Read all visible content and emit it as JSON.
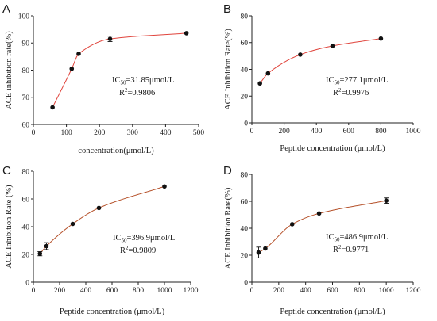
{
  "chart_data": [
    {
      "type": "scatter",
      "letter": "A",
      "xlabel": "concentration(μmol/L)",
      "ylabel": "ACE inhibition rate(%)",
      "xlim": [
        0,
        500
      ],
      "ylim": [
        60,
        100
      ],
      "xticks": [
        0,
        100,
        200,
        300,
        400,
        500
      ],
      "yticks": [
        60,
        70,
        80,
        90,
        100
      ],
      "points": [
        {
          "x": 58,
          "y": 66.3,
          "err": 0
        },
        {
          "x": 116,
          "y": 80.5,
          "err": 0
        },
        {
          "x": 137,
          "y": 86.0,
          "err": 0
        },
        {
          "x": 232,
          "y": 91.5,
          "err": 1.0
        },
        {
          "x": 463,
          "y": 93.6,
          "err": 0
        }
      ],
      "fit": {
        "color": "#e0443c",
        "x_start": 55,
        "x_end": 460
      },
      "ic50_label": "IC",
      "ic50_sub": "50",
      "ic50_value": "=31.85μmol/L",
      "r2_label": "R",
      "r2_sup": "2",
      "r2_value": "=0.9806"
    },
    {
      "type": "scatter",
      "letter": "B",
      "xlabel": "Peptide concentration (μmol/L)",
      "ylabel": "ACE Inhibition Rate(%)",
      "xlim": [
        0,
        1000
      ],
      "ylim": [
        0,
        80
      ],
      "xticks": [
        0,
        200,
        400,
        600,
        800,
        1000
      ],
      "yticks": [
        0,
        20,
        40,
        60,
        80
      ],
      "points": [
        {
          "x": 50,
          "y": 29.5,
          "err": 0
        },
        {
          "x": 100,
          "y": 37.0,
          "err": 0
        },
        {
          "x": 300,
          "y": 51.0,
          "err": 0
        },
        {
          "x": 500,
          "y": 57.5,
          "err": 0
        },
        {
          "x": 800,
          "y": 63.0,
          "err": 0
        }
      ],
      "fit": {
        "color": "#e0443c",
        "x_start": 50,
        "x_end": 800
      },
      "ic50_label": "IC",
      "ic50_sub": "50",
      "ic50_value": "=277.1μmol/L",
      "r2_label": "R",
      "r2_sup": "2",
      "r2_value": "=0.9976"
    },
    {
      "type": "scatter",
      "letter": "C",
      "xlabel": "Peptide concentration (μmol/L)",
      "ylabel": "ACE Inhibition Rate (%)",
      "xlim": [
        0,
        1200
      ],
      "ylim": [
        0,
        80
      ],
      "xticks": [
        0,
        200,
        400,
        600,
        800,
        1000,
        1200
      ],
      "yticks": [
        0,
        20,
        40,
        60,
        80
      ],
      "points": [
        {
          "x": 50,
          "y": 20.5,
          "err": 1.5
        },
        {
          "x": 100,
          "y": 26.0,
          "err": 2.5
        },
        {
          "x": 300,
          "y": 42.0,
          "err": 0
        },
        {
          "x": 500,
          "y": 53.5,
          "err": 0
        },
        {
          "x": 1000,
          "y": 69.0,
          "err": 0
        }
      ],
      "fit": {
        "color": "#b5512a",
        "x_start": 50,
        "x_end": 1000
      },
      "ic50_label": "IC",
      "ic50_sub": "50",
      "ic50_value": "=396.9μmol/L",
      "r2_label": "R",
      "r2_sup": "2",
      "r2_value": "=0.9809"
    },
    {
      "type": "scatter",
      "letter": "D",
      "xlabel": "Peptide concentration (μmol/L)",
      "ylabel": "ACE Inhibition Rate(%)",
      "xlim": [
        0,
        1200
      ],
      "ylim": [
        0,
        80
      ],
      "xticks": [
        0,
        200,
        400,
        600,
        800,
        1000,
        1200
      ],
      "yticks": [
        0,
        20,
        40,
        60,
        80
      ],
      "points": [
        {
          "x": 50,
          "y": 22.0,
          "err": 4.0
        },
        {
          "x": 100,
          "y": 25.0,
          "err": 0
        },
        {
          "x": 300,
          "y": 43.0,
          "err": 0
        },
        {
          "x": 500,
          "y": 51.0,
          "err": 0
        },
        {
          "x": 1000,
          "y": 60.5,
          "err": 2.0
        }
      ],
      "fit": {
        "color": "#b5512a",
        "x_start": 50,
        "x_end": 1000
      },
      "ic50_label": "IC",
      "ic50_sub": "50",
      "ic50_value": "=486.9μmol/L",
      "r2_label": "R",
      "r2_sup": "2",
      "r2_value": "=0.9771"
    }
  ]
}
